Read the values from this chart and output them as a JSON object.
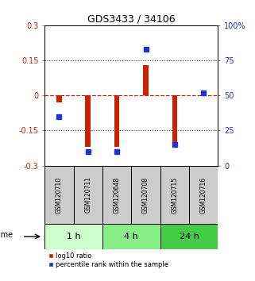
{
  "title": "GDS3433 / 34106",
  "samples": [
    "GSM120710",
    "GSM120711",
    "GSM120648",
    "GSM120708",
    "GSM120715",
    "GSM120716"
  ],
  "log10_ratio": [
    -0.03,
    -0.22,
    -0.22,
    0.13,
    -0.22,
    0.02
  ],
  "percentile_rank": [
    35,
    10,
    10,
    83,
    15,
    52
  ],
  "ylim_left": [
    -0.3,
    0.3
  ],
  "ylim_right": [
    0,
    100
  ],
  "yticks_left": [
    -0.3,
    -0.15,
    0,
    0.15,
    0.3
  ],
  "yticks_right": [
    0,
    25,
    50,
    75,
    100
  ],
  "ytick_labels_left": [
    "-0.3",
    "-0.15",
    "0",
    "0.15",
    "0.3"
  ],
  "ytick_labels_right": [
    "0",
    "25",
    "50",
    "75",
    "100%"
  ],
  "bar_color": "#cc2200",
  "square_color": "#2233cc",
  "zero_line_color": "#cc2200",
  "dotted_line_color": "#333333",
  "time_groups": [
    {
      "label": "1 h",
      "start": 0,
      "end": 2,
      "color": "#ccffcc"
    },
    {
      "label": "4 h",
      "start": 2,
      "end": 4,
      "color": "#88ee88"
    },
    {
      "label": "24 h",
      "start": 4,
      "end": 6,
      "color": "#44cc44"
    }
  ],
  "legend_items": [
    {
      "label": "log10 ratio",
      "color": "#cc2200"
    },
    {
      "label": "percentile rank within the sample",
      "color": "#2233cc"
    }
  ],
  "time_label": "time",
  "background_color": "#ffffff",
  "plot_bg": "#ffffff",
  "sample_box_color": "#cccccc",
  "bar_width": 0.18
}
